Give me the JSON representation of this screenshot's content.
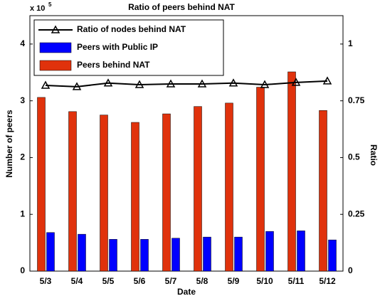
{
  "chart_data": {
    "type": "bar",
    "title": "Ratio of peers behind NAT",
    "xlabel": "Date",
    "ylabel": "Number of peers",
    "y2label": "Ratio",
    "y_multiplier": "x 10",
    "y_multiplier_exp": "5",
    "categories": [
      "5/3",
      "5/4",
      "5/5",
      "5/6",
      "5/7",
      "5/8",
      "5/9",
      "5/10",
      "5/11",
      "5/12"
    ],
    "series": [
      {
        "name": "Ratio of nodes behind NAT",
        "type": "line",
        "axis": "y2",
        "color": "#000000",
        "values": [
          0.818,
          0.812,
          0.828,
          0.821,
          0.824,
          0.824,
          0.828,
          0.821,
          0.831,
          0.837
        ]
      },
      {
        "name": "Peers with Public IP",
        "type": "bar",
        "color": "#0000ff",
        "values": [
          68000,
          65000,
          56000,
          56000,
          58000,
          60000,
          60000,
          70000,
          71000,
          55000
        ]
      },
      {
        "name": "Peers behind NAT",
        "type": "bar",
        "color": "#e0320c",
        "values": [
          306000,
          281000,
          275000,
          262000,
          277000,
          290000,
          296000,
          324000,
          351000,
          283000
        ]
      }
    ],
    "ylim": [
      0,
      450000
    ],
    "yticks": [
      0,
      {
        "value": 100000,
        "label": "1"
      },
      {
        "value": 200000,
        "label": "2"
      },
      {
        "value": 300000,
        "label": "3"
      },
      {
        "value": 400000,
        "label": "4"
      }
    ],
    "y2lim": [
      0,
      1.125
    ],
    "y2ticks": [
      0,
      0.25,
      0.5,
      0.75,
      1
    ],
    "legend": "top-left"
  }
}
